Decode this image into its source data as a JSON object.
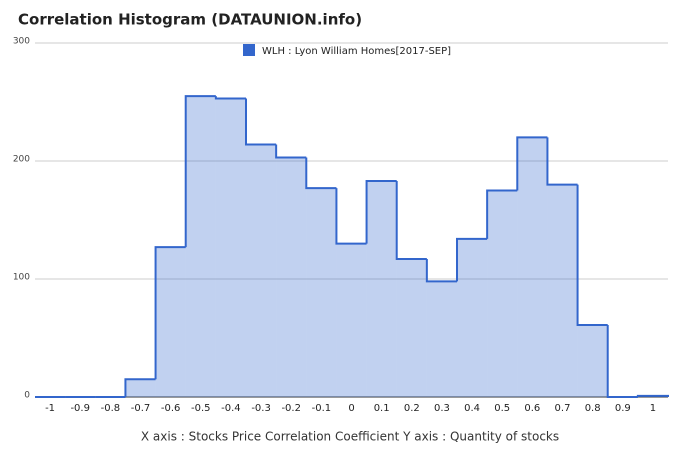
{
  "chart_data": {
    "type": "step-area",
    "title": "Correlation Histogram (DATAUNION.info)",
    "x_label": "X axis : Stocks Price Correlation Coefficient  Y axis : Quantity of stocks",
    "x": [
      -1,
      -0.9,
      -0.8,
      -0.7,
      -0.6,
      -0.5,
      -0.4,
      -0.3,
      -0.2,
      -0.1,
      0,
      0.1,
      0.2,
      0.3,
      0.4,
      0.5,
      0.6,
      0.7,
      0.8,
      0.9,
      1
    ],
    "series": [
      {
        "name": "WLH : Lyon William Homes[2017-SEP]",
        "color": "#3366cc",
        "values": [
          0,
          0,
          0,
          15,
          127,
          255,
          253,
          214,
          203,
          177,
          130,
          183,
          117,
          98,
          134,
          175,
          220,
          180,
          61,
          0,
          1
        ]
      }
    ],
    "xlim": [
      -1.05,
      1.05
    ],
    "xticks": [
      -1,
      -0.9,
      -0.8,
      -0.7,
      -0.6,
      -0.5,
      -0.4,
      -0.3,
      -0.2,
      -0.1,
      0,
      0.1,
      0.2,
      0.3,
      0.4,
      0.5,
      0.6,
      0.7,
      0.8,
      0.9,
      1
    ],
    "ylim": [
      0,
      300
    ],
    "yticks": [
      0,
      100,
      200,
      300
    ],
    "grid": true,
    "legend": "top"
  }
}
